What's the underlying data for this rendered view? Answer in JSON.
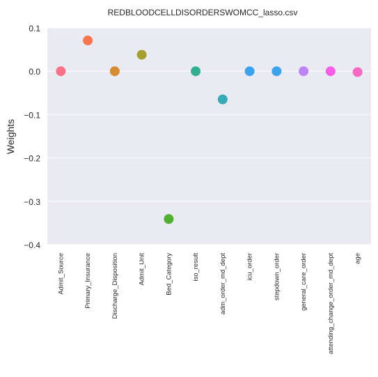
{
  "chart_data": {
    "type": "scatter",
    "title": "REDBLOODCELLDISORDERSWOMCC_lasso.csv",
    "xlabel": "",
    "ylabel": "Weights",
    "ylim": [
      -0.4,
      0.1
    ],
    "yticks": [
      0.1,
      0.0,
      -0.1,
      -0.2,
      -0.3,
      -0.4
    ],
    "ytick_labels": [
      "0.1",
      "0.0",
      "−0.1",
      "−0.2",
      "−0.3",
      "−0.4"
    ],
    "grid": true,
    "legend": "none",
    "categories": [
      "Admit_Source",
      "Primary_Insurance",
      "Discharge_Disposition",
      "Admit_Unit",
      "Bed_Category",
      "iso_result",
      "adm_order_md_dept",
      "icu_order",
      "stepdown_order",
      "general_care_order",
      "attending_change_order_md_dept",
      "age"
    ],
    "values": [
      0.0,
      0.071,
      0.0,
      0.038,
      -0.341,
      0.0,
      -0.065,
      0.0,
      0.0,
      0.0,
      0.0,
      -0.002
    ],
    "colors": [
      "#f77189",
      "#f7754f",
      "#d58c32",
      "#a4a031",
      "#50b131",
      "#34ae91",
      "#37abb5",
      "#3ba3ec",
      "#3ba3ec",
      "#bb83f4",
      "#f45fe6",
      "#f668c2"
    ]
  },
  "style": {
    "plot_background": "#eaeaf2",
    "grid_color": "#ffffff",
    "text_color": "#262626"
  }
}
